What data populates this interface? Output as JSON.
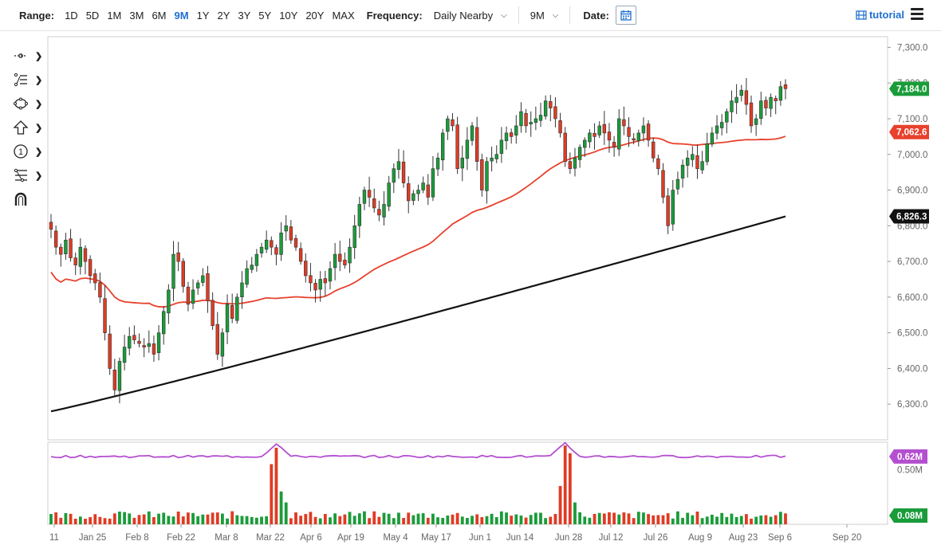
{
  "toolbar": {
    "range_label": "Range:",
    "ranges": [
      "1D",
      "5D",
      "1M",
      "3M",
      "6M",
      "9M",
      "1Y",
      "2Y",
      "3Y",
      "5Y",
      "10Y",
      "20Y",
      "MAX"
    ],
    "active_range": "9M",
    "frequency_label": "Frequency:",
    "frequency_value": "Daily Nearby",
    "period_value": "9M",
    "date_label": "Date:",
    "tutorial_label": "tutorial"
  },
  "drawing_tools": [
    "crosshair-tool-icon",
    "trend-line-tool-icon",
    "shape-tool-icon",
    "arrow-up-tool-icon",
    "numbered-marker-tool-icon",
    "fibonacci-tool-icon",
    "magnet-tool-icon"
  ],
  "colors": {
    "up": "#1a9c3a",
    "down": "#e03b24",
    "ma_short": "#e8412c",
    "ma_long": "#111111",
    "volume_avg": "#b44fd0",
    "price_tag": "#1a9c3a"
  },
  "chart_data": [
    {
      "type": "candlestick",
      "title": "",
      "xlabel": "",
      "ylabel": "",
      "ylim": [
        6200,
        7330
      ],
      "y_ticks": [
        "6,300.0",
        "6,400.0",
        "6,500.0",
        "6,600.0",
        "6,700.0",
        "6,800.0",
        "6,900.0",
        "7,000.0",
        "7,100.0",
        "7,200.0",
        "7,300.0"
      ],
      "x_tick_labels": [
        "11",
        "Jan 25",
        "Feb 8",
        "Feb 22",
        "Mar 8",
        "Mar 22",
        "Apr 6",
        "Apr 19",
        "May 4",
        "May 17",
        "Jun 1",
        "Jun 14",
        "Jun 28",
        "Jul 12",
        "Jul 26",
        "Aug 9",
        "Aug 23",
        "Sep 6",
        "Sep 20"
      ],
      "grid": false,
      "last_price": "7,184.0",
      "ma_short_last": "7,062.6",
      "ma_long_last": "6,826.3",
      "close_series": [
        6790,
        6740,
        6720,
        6760,
        6710,
        6690,
        6740,
        6700,
        6660,
        6640,
        6600,
        6500,
        6400,
        6340,
        6420,
        6460,
        6490,
        6480,
        6470,
        6460,
        6470,
        6440,
        6500,
        6560,
        6620,
        6720,
        6700,
        6630,
        6580,
        6620,
        6640,
        6660,
        6590,
        6520,
        6440,
        6500,
        6580,
        6540,
        6600,
        6640,
        6680,
        6690,
        6720,
        6740,
        6760,
        6740,
        6720,
        6780,
        6800,
        6760,
        6740,
        6700,
        6660,
        6640,
        6620,
        6650,
        6640,
        6680,
        6720,
        6700,
        6690,
        6740,
        6800,
        6860,
        6900,
        6880,
        6850,
        6830,
        6860,
        6920,
        6960,
        6980,
        6920,
        6870,
        6890,
        6900,
        6920,
        6880,
        6960,
        6990,
        7060,
        7100,
        7080,
        6960,
        6990,
        7040,
        7080,
        6980,
        6900,
        6980,
        6990,
        7000,
        7040,
        7060,
        7050,
        7080,
        7120,
        7080,
        7090,
        7100,
        7110,
        7150,
        7130,
        7100,
        7060,
        6980,
        6960,
        6990,
        7020,
        7040,
        7060,
        7050,
        7080,
        7060,
        7040,
        7020,
        7100,
        7080,
        7050,
        7040,
        7060,
        7080,
        7040,
        6990,
        6960,
        6880,
        6800,
        6900,
        6930,
        6970,
        6990,
        7000,
        6960,
        6980,
        7030,
        7060,
        7080,
        7090,
        7120,
        7150,
        7160,
        7180,
        7140,
        7080,
        7100,
        7150,
        7130,
        7160,
        7150,
        7190,
        7184
      ],
      "volume_m": {
        "ylim": [
          0,
          0.75
        ],
        "axis_ticks": [
          "0.50M"
        ],
        "last_volume": "0.08M",
        "avg_volume": "0.62M"
      }
    }
  ]
}
